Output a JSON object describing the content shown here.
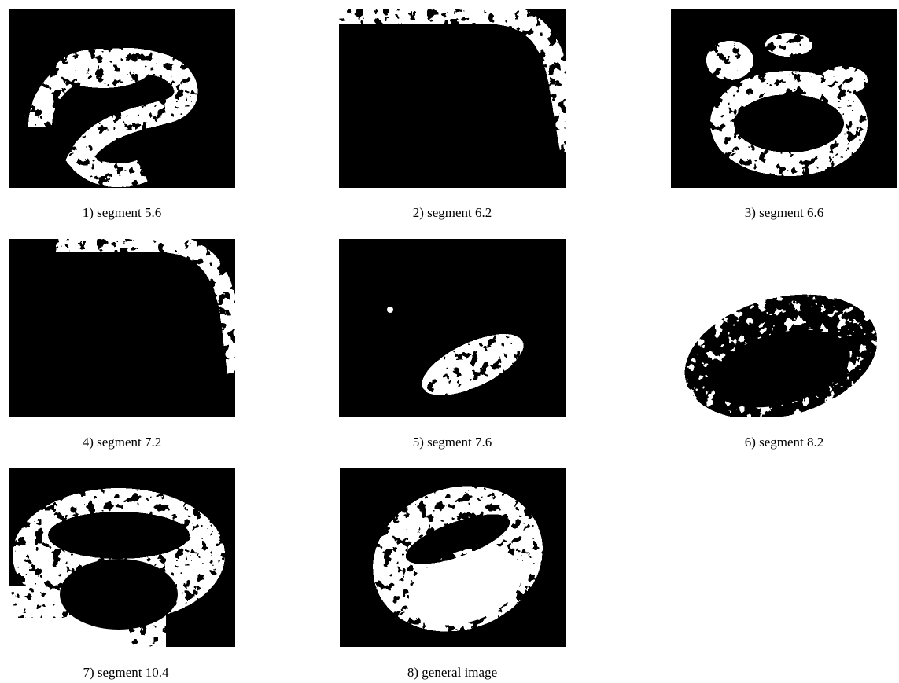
{
  "panels": [
    {
      "caption": "1) segment 5.6"
    },
    {
      "caption": "2) segment 6.2"
    },
    {
      "caption": "3) segment 6.6"
    },
    {
      "caption": "4) segment 7.2"
    },
    {
      "caption": "5) segment 7.6"
    },
    {
      "caption": "6) segment 8.2"
    },
    {
      "caption": "7) segment 10.4"
    },
    {
      "caption": "8) general image"
    }
  ]
}
